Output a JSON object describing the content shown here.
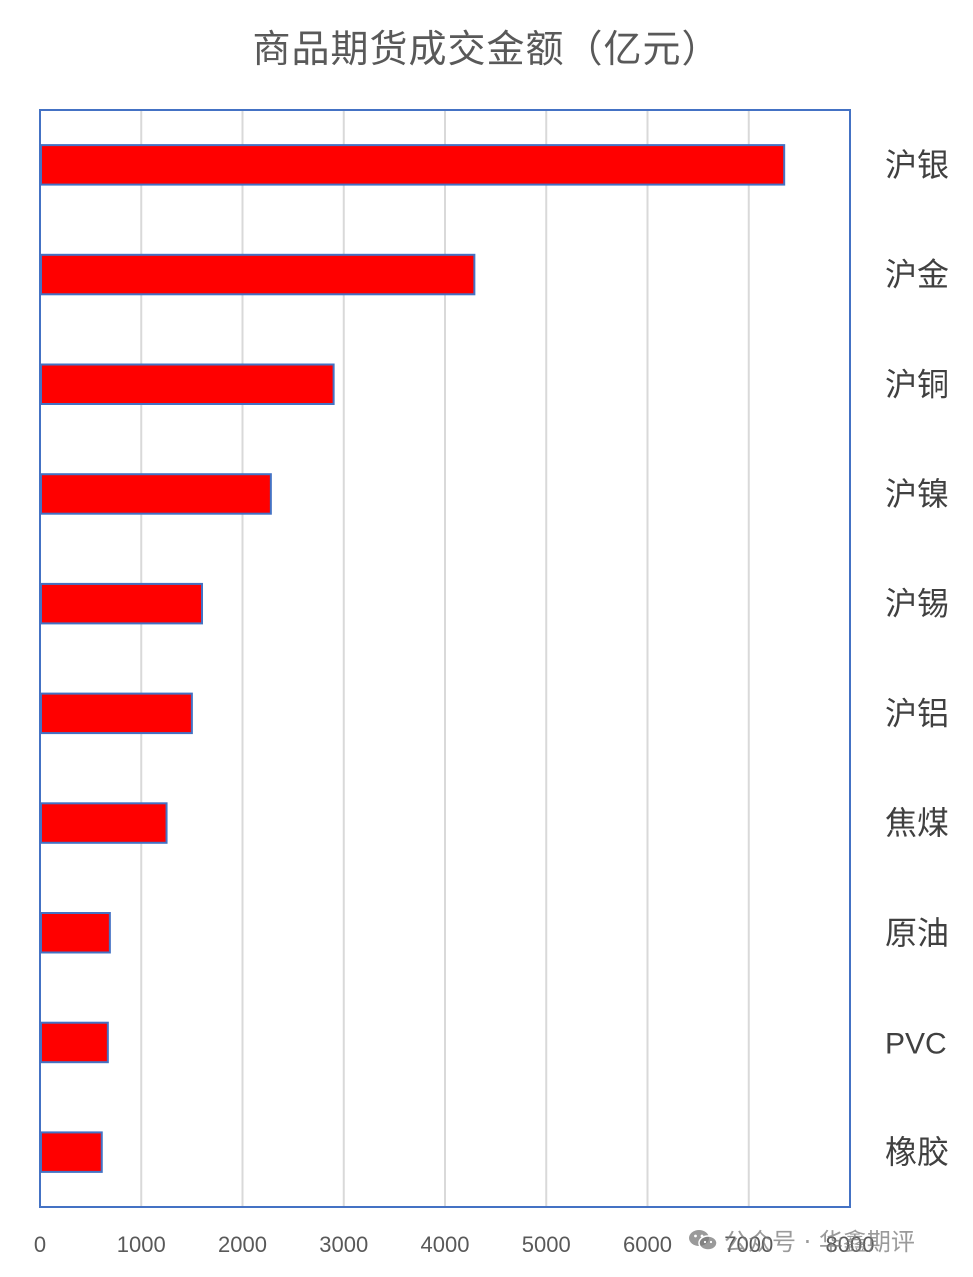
{
  "chart_data": {
    "type": "bar",
    "orientation": "horizontal",
    "title": "商品期货成交金额（亿元）",
    "categories": [
      "沪银",
      "沪金",
      "沪铜",
      "沪镍",
      "沪锡",
      "沪铝",
      "焦煤",
      "原油",
      "PVC",
      "橡胶"
    ],
    "values": [
      7350,
      4290,
      2900,
      2280,
      1600,
      1500,
      1250,
      690,
      670,
      610
    ],
    "xlim": [
      0,
      8000
    ],
    "xticks": [
      "0",
      "1000",
      "2000",
      "3000",
      "4000",
      "5000",
      "6000",
      "7000",
      "8000"
    ],
    "grid": true,
    "category_axis_side": "right",
    "bar_color": "#FF0000",
    "bar_border_color": "#4472C4",
    "frame_color": "#4472C4",
    "grid_color": "#D9D9D9"
  },
  "watermark": {
    "icon": "wechat-icon",
    "text": "公众号 · 华鑫期评"
  }
}
